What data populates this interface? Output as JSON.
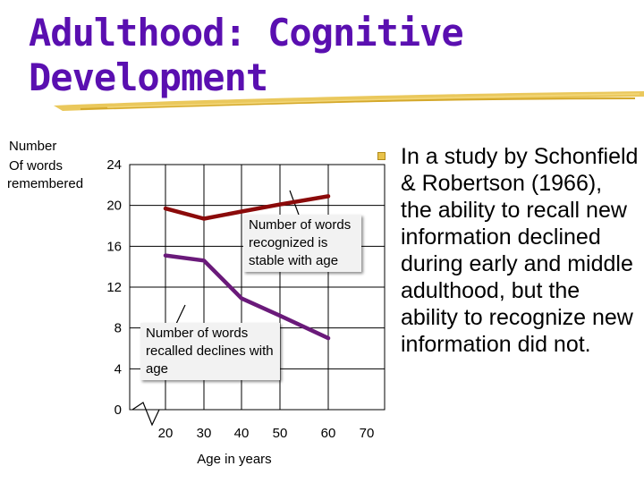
{
  "slide": {
    "title_line1": "Adulthood: Cognitive",
    "title_line2": "Development",
    "bullet": "In a study by Schonfield & Robertson (1966), the ability to recall new information declined during early and middle adulthood, but the ability to recognize new information did not.",
    "colors": {
      "title": "#5a0fb0",
      "underline": "#e8c24a",
      "bullet_marker": "#e8c24a"
    }
  },
  "chart_data": {
    "type": "line",
    "ylabel": "Number Of words remembered",
    "xlabel": "Age in years",
    "ylim": [
      0,
      24
    ],
    "yticks": [
      0,
      4,
      8,
      12,
      16,
      20,
      24
    ],
    "xticks": [
      20,
      30,
      40,
      50,
      60,
      70
    ],
    "grid": true,
    "series": [
      {
        "x": [
          20,
          30,
          40,
          50,
          60
        ],
        "values": [
          19.7,
          18.7,
          19.4,
          20.1,
          20.9
        ],
        "color": "#8b0a0a"
      },
      {
        "x": [
          20,
          30,
          40,
          50,
          60
        ],
        "values": [
          15.1,
          14.6,
          10.9,
          9.2,
          7.0
        ],
        "color": "#6a1a7a"
      }
    ],
    "annotations": [
      {
        "id": "recognized",
        "text": "Number of words recognized is stable with age"
      },
      {
        "id": "recalled",
        "text": "Number of words recalled declines with age"
      }
    ]
  }
}
